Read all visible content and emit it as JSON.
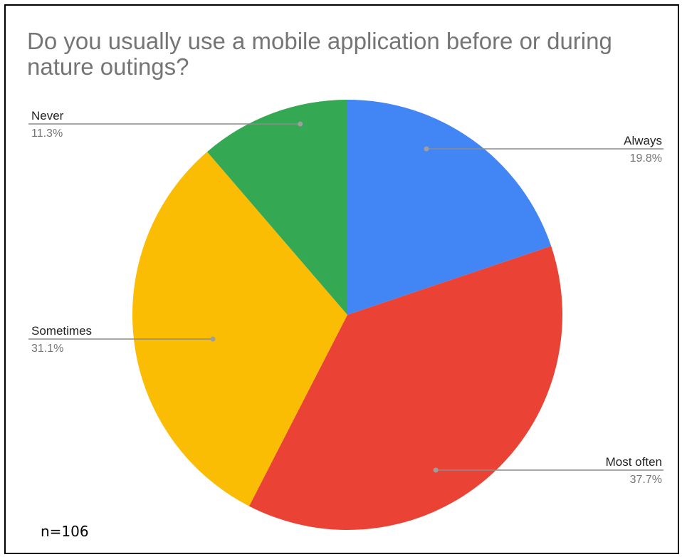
{
  "chart_data": {
    "type": "pie",
    "title": "Do you usually use a mobile application before or during nature outings?",
    "slices": [
      {
        "label": "Always",
        "value": 19.8,
        "value_label": "19.8%",
        "color": "#4285f4"
      },
      {
        "label": "Most often",
        "value": 37.7,
        "value_label": "37.7%",
        "color": "#ea4335"
      },
      {
        "label": "Sometimes",
        "value": 31.1,
        "value_label": "31.1%",
        "color": "#fbbc04"
      },
      {
        "label": "Never",
        "value": 11.3,
        "value_label": "11.3%",
        "color": "#34a853"
      }
    ],
    "start_angle": "12 o'clock",
    "direction": "clockwise"
  },
  "note": "n=106"
}
